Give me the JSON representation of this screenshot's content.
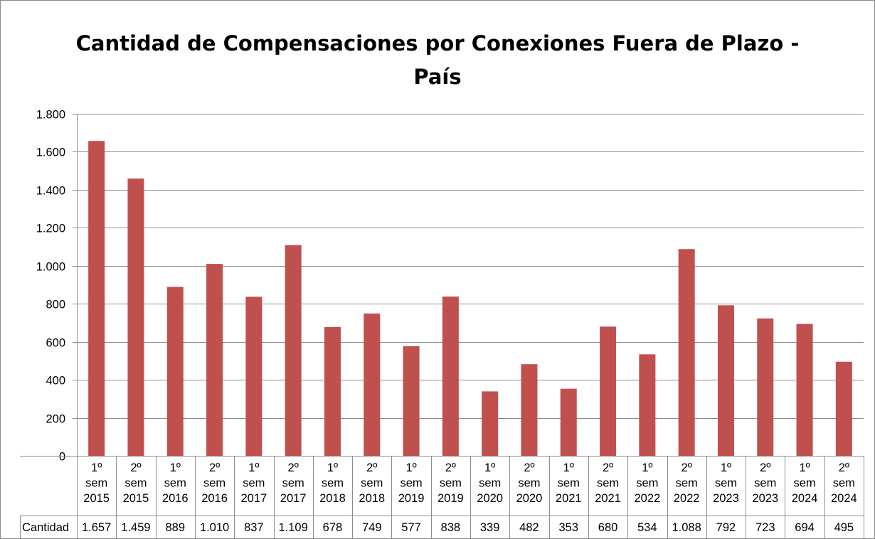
{
  "chart_data": {
    "type": "bar",
    "title": "Cantidad de Compensaciones por Conexiones Fuera de Plazo - País",
    "title_lines": [
      "Cantidad de Compensaciones por Conexiones Fuera de Plazo -",
      "País"
    ],
    "xlabel": "",
    "ylabel": "",
    "ylim": [
      0,
      1800
    ],
    "yticks": [
      0,
      200,
      400,
      600,
      800,
      1000,
      1200,
      1400,
      1600,
      1800
    ],
    "ytick_labels": [
      "0",
      "200",
      "400",
      "600",
      "800",
      "1.000",
      "1.200",
      "1.400",
      "1.600",
      "1.800"
    ],
    "grid": true,
    "bar_color": "#c0504d",
    "categories": [
      [
        "1º",
        "sem",
        "2015"
      ],
      [
        "2º",
        "sem",
        "2015"
      ],
      [
        "1º",
        "sem",
        "2016"
      ],
      [
        "2º",
        "sem",
        "2016"
      ],
      [
        "1º",
        "sem",
        "2017"
      ],
      [
        "2º",
        "sem",
        "2017"
      ],
      [
        "1º",
        "sem",
        "2018"
      ],
      [
        "2º",
        "sem",
        "2018"
      ],
      [
        "1º",
        "sem",
        "2019"
      ],
      [
        "2º",
        "sem",
        "2019"
      ],
      [
        "1º",
        "sem",
        "2020"
      ],
      [
        "2º",
        "sem",
        "2020"
      ],
      [
        "1º",
        "sem",
        "2021"
      ],
      [
        "2º",
        "sem",
        "2021"
      ],
      [
        "1º",
        "sem",
        "2022"
      ],
      [
        "2º",
        "sem",
        "2022"
      ],
      [
        "1º",
        "sem",
        "2023"
      ],
      [
        "2º",
        "sem",
        "2023"
      ],
      [
        "1º",
        "sem",
        "2024"
      ],
      [
        "2º",
        "sem",
        "2024"
      ]
    ],
    "series": [
      {
        "name": "Cantidad",
        "values": [
          1657,
          1459,
          889,
          1010,
          837,
          1109,
          678,
          749,
          577,
          838,
          339,
          482,
          353,
          680,
          534,
          1088,
          792,
          723,
          694,
          495
        ],
        "value_labels": [
          "1.657",
          "1.459",
          "889",
          "1.010",
          "837",
          "1.109",
          "678",
          "749",
          "577",
          "838",
          "339",
          "482",
          "353",
          "680",
          "534",
          "1.088",
          "792",
          "723",
          "694",
          "495"
        ]
      }
    ],
    "legend": "data-table"
  }
}
